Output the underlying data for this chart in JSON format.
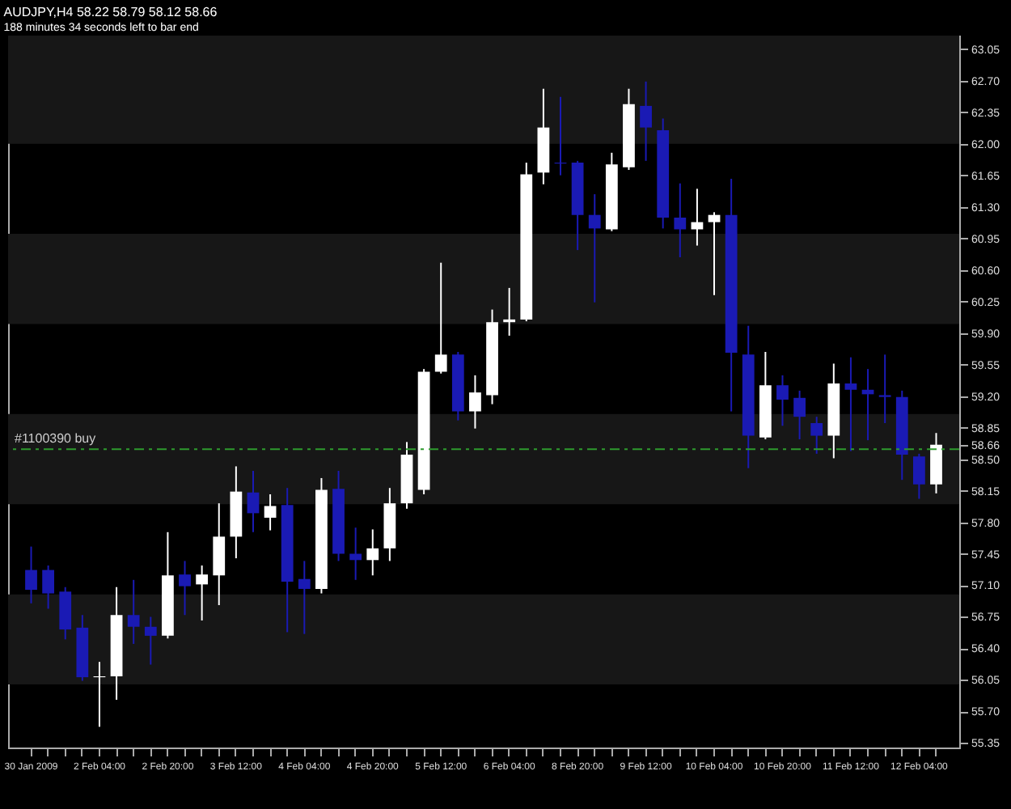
{
  "chart_data": {
    "type": "candlestick",
    "title": "AUDJPY,H4  58.22 58.79 58.12 58.66",
    "subtitle": "188 minutes 34 seconds left to bar end",
    "categories": [
      "30 Jan 2009",
      null,
      null,
      null,
      "2 Feb 04:00",
      null,
      null,
      null,
      "2 Feb 20:00",
      null,
      null,
      null,
      "3 Feb 12:00",
      null,
      null,
      null,
      "4 Feb 04:00",
      null,
      null,
      null,
      "4 Feb 20:00",
      null,
      null,
      null,
      "5 Feb 12:00",
      null,
      null,
      null,
      "6 Feb 04:00",
      null,
      null,
      null,
      "8 Feb 20:00",
      null,
      null,
      null,
      "9 Feb 12:00",
      null,
      null,
      null,
      "10 Feb 04:00",
      null,
      null,
      null,
      "10 Feb 20:00",
      null,
      null,
      null,
      "11 Feb 12:00",
      null,
      null,
      null,
      "12 Feb 04:00",
      null
    ],
    "ohlc": [
      [
        57.27,
        57.53,
        56.9,
        57.05
      ],
      [
        57.27,
        57.32,
        56.84,
        57.01
      ],
      [
        57.03,
        57.08,
        56.5,
        56.61
      ],
      [
        56.63,
        56.77,
        56.04,
        56.08
      ],
      [
        56.08,
        56.25,
        55.53,
        56.09
      ],
      [
        56.09,
        57.08,
        55.83,
        56.77
      ],
      [
        56.77,
        57.16,
        56.45,
        56.64
      ],
      [
        56.64,
        56.75,
        56.22,
        56.54
      ],
      [
        56.54,
        57.69,
        56.51,
        57.21
      ],
      [
        57.22,
        57.37,
        56.77,
        57.09
      ],
      [
        57.11,
        57.32,
        56.71,
        57.22
      ],
      [
        57.21,
        58.01,
        56.88,
        57.64
      ],
      [
        57.64,
        58.42,
        57.4,
        58.14
      ],
      [
        58.13,
        58.37,
        57.69,
        57.9
      ],
      [
        57.85,
        58.11,
        57.71,
        57.98
      ],
      [
        57.99,
        58.18,
        56.58,
        57.14
      ],
      [
        57.17,
        57.37,
        56.56,
        57.06
      ],
      [
        57.06,
        58.29,
        57.01,
        58.16
      ],
      [
        58.17,
        58.37,
        57.37,
        57.45
      ],
      [
        57.45,
        57.74,
        57.16,
        57.38
      ],
      [
        57.38,
        57.72,
        57.21,
        57.51
      ],
      [
        57.51,
        58.18,
        57.37,
        58.01
      ],
      [
        58.01,
        58.69,
        57.95,
        58.55
      ],
      [
        58.16,
        59.5,
        58.11,
        59.47
      ],
      [
        59.47,
        60.68,
        59.45,
        59.66
      ],
      [
        59.66,
        59.69,
        58.93,
        59.03
      ],
      [
        59.03,
        59.43,
        58.84,
        59.24
      ],
      [
        59.21,
        60.16,
        59.11,
        60.02
      ],
      [
        60.02,
        60.4,
        59.87,
        60.05
      ],
      [
        60.05,
        61.79,
        60.03,
        61.66
      ],
      [
        61.68,
        62.61,
        61.55,
        62.18
      ],
      [
        61.79,
        62.52,
        61.65,
        61.78
      ],
      [
        61.79,
        61.81,
        60.82,
        61.21
      ],
      [
        61.21,
        61.44,
        60.24,
        61.06
      ],
      [
        61.05,
        61.9,
        61.03,
        61.77
      ],
      [
        61.74,
        62.61,
        61.71,
        62.44
      ],
      [
        62.42,
        62.69,
        61.81,
        62.18
      ],
      [
        62.15,
        62.28,
        61.06,
        61.18
      ],
      [
        61.18,
        61.56,
        60.74,
        61.05
      ],
      [
        61.05,
        61.5,
        60.87,
        61.13
      ],
      [
        61.13,
        61.24,
        60.32,
        61.21
      ],
      [
        61.21,
        61.61,
        59.03,
        59.68
      ],
      [
        59.66,
        59.98,
        58.4,
        58.76
      ],
      [
        58.74,
        59.69,
        58.72,
        59.32
      ],
      [
        59.32,
        59.43,
        58.87,
        59.16
      ],
      [
        59.18,
        59.26,
        58.72,
        58.97
      ],
      [
        58.9,
        58.97,
        58.56,
        58.76
      ],
      [
        58.76,
        59.56,
        58.51,
        59.34
      ],
      [
        59.34,
        59.63,
        58.59,
        59.27
      ],
      [
        59.27,
        59.5,
        58.71,
        59.22
      ],
      [
        59.21,
        59.66,
        58.9,
        59.19
      ],
      [
        59.19,
        59.26,
        58.27,
        58.55
      ],
      [
        58.53,
        58.56,
        58.06,
        58.22
      ],
      [
        58.22,
        58.79,
        58.12,
        58.66
      ]
    ],
    "colors": [
      "#1a1ab4",
      "#1a1ab4",
      "#1a1ab4",
      "#1a1ab4",
      "#ffffff",
      "#ffffff",
      "#1a1ab4",
      "#1a1ab4",
      "#ffffff",
      "#1a1ab4",
      "#ffffff",
      "#ffffff",
      "#ffffff",
      "#1a1ab4",
      "#ffffff",
      "#1a1ab4",
      "#1a1ab4",
      "#ffffff",
      "#1a1ab4",
      "#1a1ab4",
      "#ffffff",
      "#ffffff",
      "#ffffff",
      "#ffffff",
      "#ffffff",
      "#1a1ab4",
      "#ffffff",
      "#ffffff",
      "#ffffff",
      "#ffffff",
      "#ffffff",
      "#1a1ab4",
      "#1a1ab4",
      "#1a1ab4",
      "#ffffff",
      "#ffffff",
      "#1a1ab4",
      "#1a1ab4",
      "#1a1ab4",
      "#ffffff",
      "#ffffff",
      "#1a1ab4",
      "#1a1ab4",
      "#ffffff",
      "#1a1ab4",
      "#1a1ab4",
      "#1a1ab4",
      "#ffffff",
      "#1a1ab4",
      "#1a1ab4",
      "#1a1ab4",
      "#1a1ab4",
      "#1a1ab4",
      "#ffffff"
    ],
    "ylim": [
      55.3,
      63.2
    ],
    "yticks": [
      63.05,
      {
        "value": 62.7,
        "label": "62.70"
      },
      62.35,
      {
        "value": 62,
        "label": "62.00"
      },
      61.65,
      {
        "value": 61.3,
        "label": "61.30"
      },
      60.95,
      {
        "value": 60.6,
        "label": "60.60"
      },
      60.25,
      {
        "value": 59.9,
        "label": "59.90"
      },
      59.55,
      {
        "value": 59.2,
        "label": "59.20"
      },
      58.85,
      58.66,
      {
        "value": 58.5,
        "label": "58.50"
      },
      58.15,
      {
        "value": 57.8,
        "label": "57.80"
      },
      57.45,
      {
        "value": 57.1,
        "label": "57.10"
      },
      56.75,
      {
        "value": 56.4,
        "label": "56.40"
      },
      56.05,
      {
        "value": 55.7,
        "label": "55.70"
      },
      55.35
    ],
    "bands": [
      {
        "axis": "y",
        "from": 62,
        "to": 63.2,
        "color": "#171717"
      },
      {
        "axis": "y",
        "from": 60,
        "to": 61,
        "color": "#171717"
      },
      {
        "axis": "y",
        "from": 58,
        "to": 59,
        "color": "#171717"
      },
      {
        "axis": "y",
        "from": 56,
        "to": 57,
        "color": "#171717"
      }
    ],
    "ref_lines": [
      {
        "axis": "y",
        "value": 58.61,
        "label": "#1100390 buy",
        "color": "#2e9a2e",
        "line_style": "dashed"
      }
    ]
  }
}
